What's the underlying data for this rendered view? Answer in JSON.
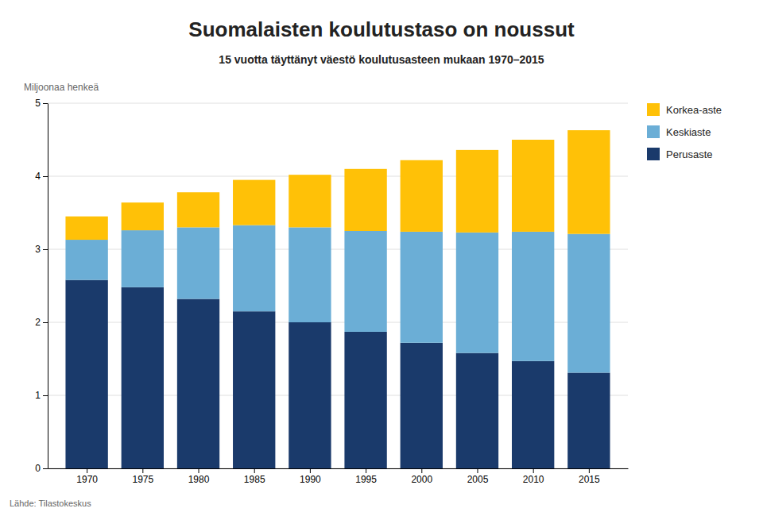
{
  "chart_data": {
    "type": "bar",
    "stacked": true,
    "title": "Suomalaisten koulutustaso on noussut",
    "subtitle": "15 vuotta täyttänyt väestö koulutusasteen mukaan 1970–2015",
    "ylabel": "Miljoonaa henkeä",
    "source": "Lähde: Tilastokeskus",
    "x": [
      1970,
      1975,
      1980,
      1985,
      1990,
      1995,
      2000,
      2005,
      2010,
      2015
    ],
    "xlim": [
      1966.5,
      2018.5
    ],
    "xticks": [
      1970,
      1975,
      1980,
      1985,
      1990,
      1995,
      2000,
      2005,
      2010,
      2015
    ],
    "series": [
      {
        "name": "Perusaste",
        "color": "#1a3a6b",
        "values": [
          2.58,
          2.48,
          2.32,
          2.15,
          2.0,
          1.87,
          1.72,
          1.58,
          1.47,
          1.31
        ]
      },
      {
        "name": "Keskiaste",
        "color": "#6baed6",
        "values": [
          0.55,
          0.78,
          0.98,
          1.18,
          1.3,
          1.38,
          1.52,
          1.65,
          1.77,
          1.9
        ]
      },
      {
        "name": "Korkea-aste",
        "color": "#ffc107",
        "values": [
          0.32,
          0.38,
          0.48,
          0.62,
          0.72,
          0.85,
          0.98,
          1.13,
          1.26,
          1.42
        ]
      }
    ],
    "ylim": [
      0,
      5
    ],
    "yticks": [
      0,
      1,
      2,
      3,
      4,
      5
    ],
    "grid": true,
    "legend": "upper right"
  }
}
